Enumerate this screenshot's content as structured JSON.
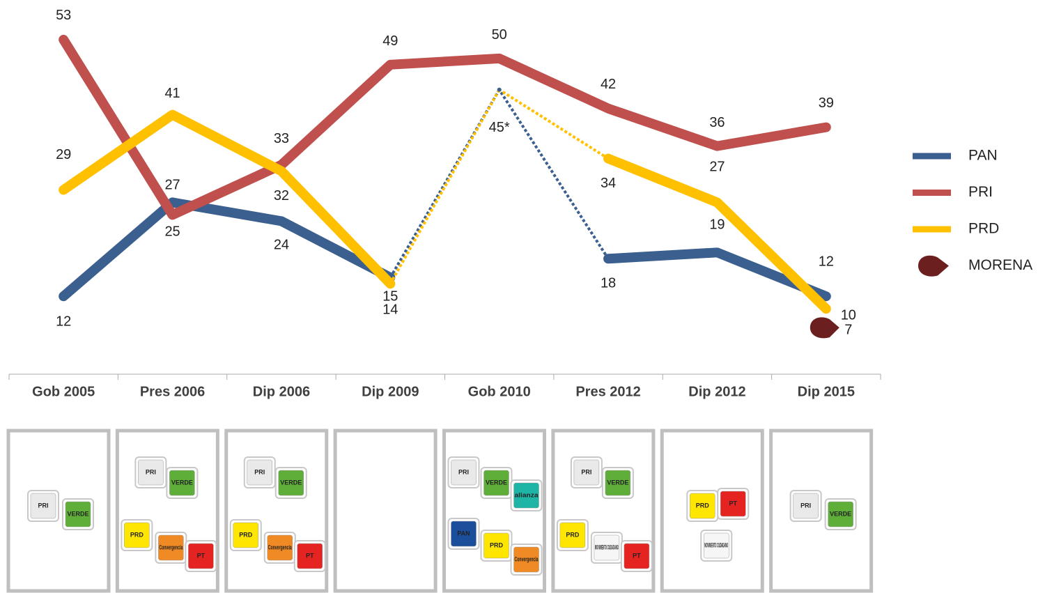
{
  "chart_data": {
    "type": "line",
    "categories": [
      "Gob 2005",
      "Pres 2006",
      "Dip 2006",
      "Dip 2009",
      "Gob 2010",
      "Pres 2012",
      "Dip 2012",
      "Dip 2015"
    ],
    "ylim": [
      0,
      60
    ],
    "series": [
      {
        "name": "PAN",
        "color": "#3b5f8e",
        "values": [
          12,
          27,
          24,
          15,
          null,
          18,
          19,
          12
        ]
      },
      {
        "name": "PRI",
        "color": "#c0504d",
        "values": [
          53,
          25,
          33,
          49,
          50,
          42,
          36,
          39
        ]
      },
      {
        "name": "PRD",
        "color": "#ffc000",
        "values": [
          29,
          41,
          32,
          14,
          null,
          34,
          27,
          10
        ]
      },
      {
        "name": "MORENA",
        "color": "#6b1f1f",
        "values": [
          null,
          null,
          null,
          null,
          null,
          null,
          null,
          7
        ]
      }
    ],
    "alliance": {
      "category": "Gob 2010",
      "value": 45,
      "label": "45*",
      "series": [
        "PAN",
        "PRD"
      ]
    },
    "coalitions": [
      [
        {
          "label": "PRI",
          "color": "#e9e9e9"
        },
        {
          "label": "VERDE",
          "color": "#5fae3a"
        }
      ],
      [
        {
          "label": "PRI",
          "color": "#e9e9e9"
        },
        {
          "label": "VERDE",
          "color": "#5fae3a"
        },
        {
          "label": "PRD",
          "color": "#ffe600"
        },
        {
          "label": "Convergencia",
          "color": "#f08a24"
        },
        {
          "label": "PT",
          "color": "#e52421"
        }
      ],
      [
        {
          "label": "PRI",
          "color": "#e9e9e9"
        },
        {
          "label": "VERDE",
          "color": "#5fae3a"
        },
        {
          "label": "PRD",
          "color": "#ffe600"
        },
        {
          "label": "Convergencia",
          "color": "#f08a24"
        },
        {
          "label": "PT",
          "color": "#e52421"
        }
      ],
      [],
      [
        {
          "label": "PRI",
          "color": "#e9e9e9"
        },
        {
          "label": "VERDE",
          "color": "#5fae3a"
        },
        {
          "label": "alianza",
          "color": "#1fb5a6"
        },
        {
          "label": "PAN",
          "color": "#1b4e9b"
        },
        {
          "label": "PRD",
          "color": "#ffe600"
        },
        {
          "label": "Convergencia",
          "color": "#f08a24"
        }
      ],
      [
        {
          "label": "PRI",
          "color": "#e9e9e9"
        },
        {
          "label": "VERDE",
          "color": "#5fae3a"
        },
        {
          "label": "PRD",
          "color": "#ffe600"
        },
        {
          "label": "MOVIMIENTO CIUDADANO",
          "color": "#f6f6f6"
        },
        {
          "label": "PT",
          "color": "#e52421"
        }
      ],
      [
        {
          "label": "PRD",
          "color": "#ffe600"
        },
        {
          "label": "PT",
          "color": "#e52421"
        },
        {
          "label": "MOVIMIENTO CIUDADANO",
          "color": "#f6f6f6"
        }
      ],
      [
        {
          "label": "PRI",
          "color": "#e9e9e9"
        },
        {
          "label": "VERDE",
          "color": "#5fae3a"
        }
      ]
    ]
  }
}
